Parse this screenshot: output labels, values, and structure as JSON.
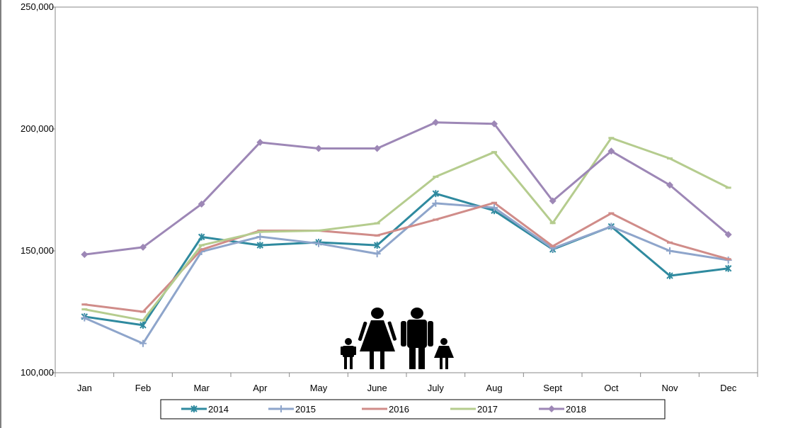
{
  "chart_data": {
    "type": "line",
    "categories": [
      "Jan",
      "Feb",
      "Mar",
      "Apr",
      "May",
      "June",
      "July",
      "Aug",
      "Sept",
      "Oct",
      "Nov",
      "Dec"
    ],
    "ylim": [
      100000,
      250000
    ],
    "yticks": [
      100000,
      150000,
      200000,
      250000
    ],
    "ytick_labels": [
      "100,000",
      "150,000",
      "200,000",
      "250,000"
    ],
    "grid": false,
    "legend_position": "bottom",
    "series": [
      {
        "name": "2014",
        "color": "#2f8a9f",
        "marker": "star",
        "values": [
          123000,
          119500,
          155700,
          152300,
          153500,
          152300,
          173500,
          166500,
          150600,
          160000,
          139800,
          142800
        ]
      },
      {
        "name": "2015",
        "color": "#8ea5cb",
        "marker": "plus",
        "values": [
          122500,
          112000,
          149700,
          155800,
          153000,
          148800,
          169500,
          167700,
          151000,
          160000,
          150000,
          146200
        ]
      },
      {
        "name": "2016",
        "color": "#d08c89",
        "marker": "dash",
        "values": [
          128000,
          125000,
          150500,
          158300,
          158300,
          156300,
          162800,
          169700,
          151900,
          165400,
          153400,
          146600
        ]
      },
      {
        "name": "2017",
        "color": "#b5cc8e",
        "marker": "dash",
        "values": [
          126000,
          121500,
          152300,
          157800,
          158300,
          161300,
          180400,
          190500,
          161400,
          196300,
          187900,
          175900
        ]
      },
      {
        "name": "2018",
        "color": "#9d87b6",
        "marker": "diamond",
        "values": [
          148500,
          151500,
          169200,
          194500,
          192000,
          192000,
          202700,
          202100,
          170500,
          190900,
          177000,
          156700
        ]
      }
    ]
  }
}
